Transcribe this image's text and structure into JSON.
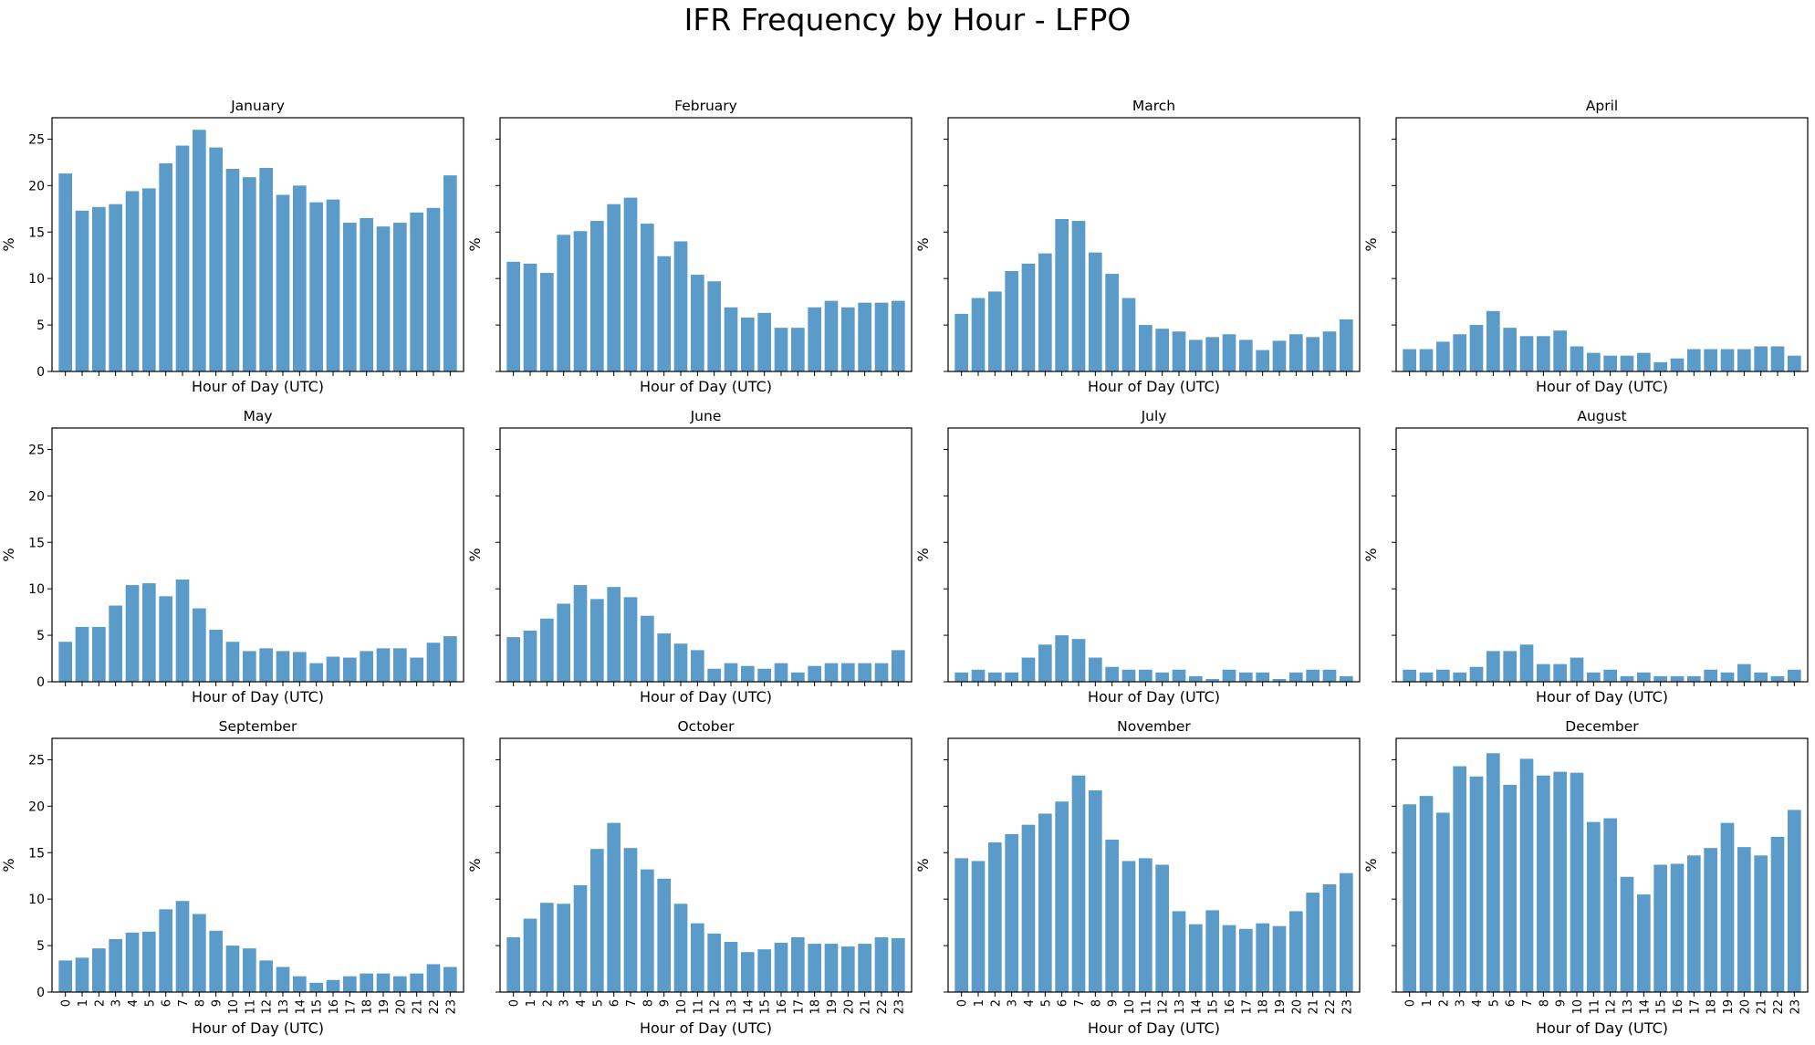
{
  "figure_title": "IFR Frequency by Hour - LFPO",
  "chart_data": {
    "type": "bar",
    "title": "IFR Frequency by Hour - LFPO",
    "xlabel": "Hour of Day (UTC)",
    "ylabel": "%",
    "ylim": [
      0,
      27.3
    ],
    "yticks": [
      0,
      5,
      10,
      15,
      20,
      25
    ],
    "categories": [
      "0",
      "1",
      "2",
      "3",
      "4",
      "5",
      "6",
      "7",
      "8",
      "9",
      "10",
      "11",
      "12",
      "13",
      "14",
      "15",
      "16",
      "17",
      "18",
      "19",
      "20",
      "21",
      "22",
      "23"
    ],
    "bar_color": "#5b9bc9",
    "grid": false,
    "layout": "3 rows x 4 columns, shared y axis",
    "panels": [
      {
        "title": "January",
        "values": [
          21.3,
          17.3,
          17.7,
          18.0,
          19.4,
          19.7,
          22.4,
          24.3,
          26.0,
          24.1,
          21.8,
          20.9,
          21.9,
          19.0,
          20.0,
          18.2,
          18.5,
          16.0,
          16.5,
          15.6,
          16.0,
          17.1,
          17.6,
          21.1
        ]
      },
      {
        "title": "February",
        "values": [
          11.8,
          11.6,
          10.6,
          14.7,
          15.1,
          16.2,
          18.0,
          18.7,
          15.9,
          12.4,
          14.0,
          10.4,
          9.7,
          6.9,
          5.8,
          6.3,
          4.7,
          4.7,
          6.9,
          7.6,
          6.9,
          7.4,
          7.4,
          7.6
        ]
      },
      {
        "title": "March",
        "values": [
          6.2,
          7.9,
          8.6,
          10.8,
          11.6,
          12.7,
          16.4,
          16.2,
          12.8,
          10.5,
          7.9,
          5.0,
          4.6,
          4.3,
          3.4,
          3.7,
          4.0,
          3.4,
          2.3,
          3.3,
          4.0,
          3.7,
          4.3,
          5.6
        ]
      },
      {
        "title": "April",
        "values": [
          2.4,
          2.4,
          3.2,
          4.0,
          5.0,
          6.5,
          4.7,
          3.8,
          3.8,
          4.4,
          2.7,
          2.0,
          1.7,
          1.7,
          2.0,
          1.0,
          1.4,
          2.4,
          2.4,
          2.4,
          2.4,
          2.7,
          2.7,
          1.7
        ]
      },
      {
        "title": "May",
        "values": [
          4.3,
          5.9,
          5.9,
          8.2,
          10.4,
          10.6,
          9.2,
          11.0,
          7.9,
          5.6,
          4.3,
          3.3,
          3.6,
          3.3,
          3.2,
          2.0,
          2.7,
          2.6,
          3.3,
          3.6,
          3.6,
          2.6,
          4.2,
          4.9
        ]
      },
      {
        "title": "June",
        "values": [
          4.8,
          5.5,
          6.8,
          8.4,
          10.4,
          8.9,
          10.2,
          9.1,
          7.1,
          5.2,
          4.1,
          3.4,
          1.4,
          2.0,
          1.7,
          1.4,
          2.0,
          1.0,
          1.7,
          2.0,
          2.0,
          2.0,
          2.0,
          3.4
        ]
      },
      {
        "title": "July",
        "values": [
          1.0,
          1.3,
          1.0,
          1.0,
          2.6,
          4.0,
          5.0,
          4.6,
          2.6,
          1.6,
          1.3,
          1.3,
          1.0,
          1.3,
          0.6,
          0.3,
          1.3,
          1.0,
          1.0,
          0.3,
          1.0,
          1.3,
          1.3,
          0.6
        ]
      },
      {
        "title": "August",
        "values": [
          1.3,
          1.0,
          1.3,
          1.0,
          1.6,
          3.3,
          3.3,
          4.0,
          1.9,
          1.9,
          2.6,
          1.0,
          1.3,
          0.6,
          1.0,
          0.6,
          0.6,
          0.6,
          1.3,
          1.0,
          1.9,
          1.0,
          0.6,
          1.3
        ]
      },
      {
        "title": "September",
        "values": [
          3.4,
          3.7,
          4.7,
          5.7,
          6.4,
          6.5,
          8.9,
          9.8,
          8.4,
          6.6,
          5.0,
          4.7,
          3.4,
          2.7,
          1.7,
          1.0,
          1.3,
          1.7,
          2.0,
          2.0,
          1.7,
          2.0,
          3.0,
          2.7
        ]
      },
      {
        "title": "October",
        "values": [
          5.9,
          7.9,
          9.6,
          9.5,
          11.5,
          15.4,
          18.2,
          15.5,
          13.2,
          12.2,
          9.5,
          7.4,
          6.3,
          5.4,
          4.3,
          4.6,
          5.3,
          5.9,
          5.2,
          5.2,
          4.9,
          5.2,
          5.9,
          5.8
        ]
      },
      {
        "title": "November",
        "values": [
          14.4,
          14.1,
          16.1,
          17.0,
          18.0,
          19.2,
          20.5,
          23.3,
          21.7,
          16.4,
          14.1,
          14.4,
          13.7,
          8.7,
          7.3,
          8.8,
          7.2,
          6.8,
          7.4,
          7.1,
          8.7,
          10.7,
          11.6,
          12.8
        ]
      },
      {
        "title": "December",
        "values": [
          20.2,
          21.1,
          19.3,
          24.3,
          23.2,
          25.7,
          22.3,
          25.1,
          23.3,
          23.7,
          23.6,
          18.3,
          18.7,
          12.4,
          10.5,
          13.7,
          13.8,
          14.7,
          15.5,
          18.2,
          15.6,
          14.7,
          16.7,
          19.6
        ]
      }
    ]
  }
}
